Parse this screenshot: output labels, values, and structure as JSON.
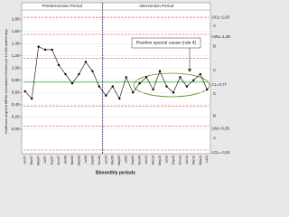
{
  "chart_data": {
    "type": "line",
    "x_label": "Bimonthly periods",
    "y_label": "Healthcare acquired MRSA colonization/infection per 10,000 patient days",
    "categories": [
      "Jan07",
      "Mar07",
      "May07",
      "Jul07",
      "Sep07",
      "Nov07",
      "Jan08",
      "Mar08",
      "May08",
      "Jul08",
      "Sep08",
      "Nov08",
      "Jan09",
      "Mar09",
      "May09",
      "Jul09",
      "Sep09",
      "Nov09",
      "Jan10",
      "Mar10",
      "May10",
      "Jul10",
      "Sep10",
      "Nov10",
      "Jan11",
      "Mar11",
      "May11",
      "Jul11"
    ],
    "series": [
      {
        "color": "#000000",
        "values": [
          0.62,
          0.5,
          1.35,
          1.3,
          1.3,
          1.05,
          0.9,
          0.75,
          0.9,
          1.1,
          0.95,
          0.7,
          0.55,
          0.7,
          0.5,
          0.85,
          0.6,
          0.75,
          0.85,
          0.65,
          0.95,
          0.7,
          0.6,
          0.85,
          0.7,
          0.8,
          0.9,
          0.65
        ]
      }
    ],
    "phases": [
      {
        "label": "Preintervention Period",
        "start": "Jan07"
      },
      {
        "label": "Intervention Period",
        "start": "Jan09"
      }
    ],
    "limits": [
      {
        "value": 1.83,
        "label": "UCL=1,83",
        "color": "#d9534f"
      },
      {
        "value": 1.55,
        "label": "UWL=1,55",
        "color": "#d9534f"
      },
      {
        "value": 1.16,
        "color": "#d9534f"
      },
      {
        "value": 0.77,
        "label": "CL=0,77",
        "color": "#4caf50"
      },
      {
        "value": 0.38,
        "color": "#d9534f"
      },
      {
        "value": 0.05,
        "label": "LWL=0,05",
        "color": "#d9534f"
      },
      {
        "value": -0.34,
        "label": "LCL=-0,34",
        "color": "#d9534f"
      }
    ],
    "zones": [
      "A",
      "B",
      "C",
      "C",
      "B",
      "A"
    ],
    "annotation": "Positive special cause (rule 4)",
    "ylim": [
      -0.4,
      1.95
    ],
    "yticks": [
      {
        "value": 0,
        "label": "0,00"
      },
      {
        "value": 0.2,
        "label": "0,20"
      },
      {
        "value": 0.4,
        "label": "0,40"
      },
      {
        "value": 0.6,
        "label": "0,60"
      },
      {
        "value": 0.8,
        "label": "0,80"
      },
      {
        "value": 1,
        "label": "1,00"
      },
      {
        "value": 1.2,
        "label": "1,20"
      },
      {
        "value": 1.4,
        "label": "1,40"
      },
      {
        "value": 1.6,
        "label": "1,60"
      },
      {
        "value": 1.8,
        "label": "1,80"
      }
    ],
    "grid": true
  }
}
